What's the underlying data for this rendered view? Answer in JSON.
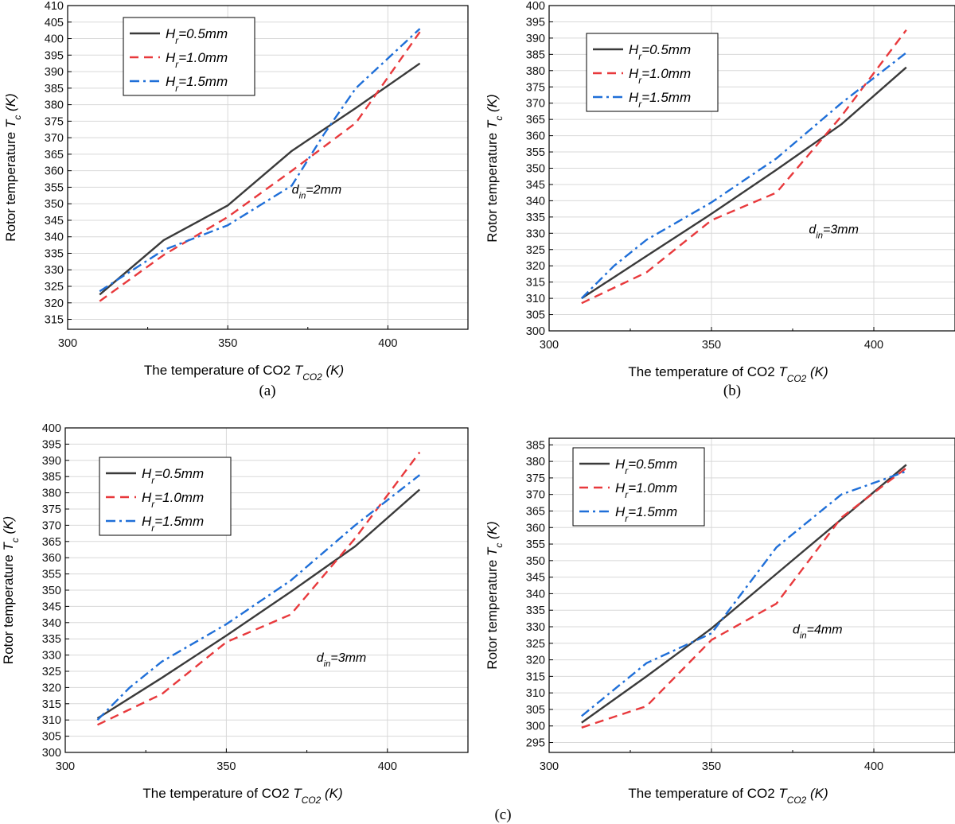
{
  "figure_label": "(c)",
  "colors": {
    "series": [
      "#3a3a3a",
      "#e8393c",
      "#1f6fd8"
    ],
    "grid": "#d8d8d8",
    "axis": "#000000"
  },
  "chart_data": [
    {
      "type": "line",
      "panel_label": "(a)",
      "title": "",
      "xlabel": "The temperature of CO2 ",
      "xlabel_var": "T",
      "xlabel_sub": "CO2",
      "xlabel_unit": " (K)",
      "ylabel": "Rotor temperature ",
      "ylabel_var": "T",
      "ylabel_sub": "c",
      "ylabel_unit": " (K)",
      "xlim": [
        300,
        425
      ],
      "ylim": [
        312,
        410
      ],
      "xticks": [
        300,
        350,
        400
      ],
      "yticks": [
        315,
        320,
        325,
        330,
        335,
        340,
        345,
        350,
        355,
        360,
        365,
        370,
        375,
        380,
        385,
        390,
        395,
        400,
        405,
        410
      ],
      "legend_position": "top-left",
      "annotation": {
        "var": "d",
        "sub": "in",
        "text": "=2mm",
        "x": 370,
        "y": 353
      },
      "series": [
        {
          "name": "H_r=0.5mm",
          "label_var": "H",
          "label_sub": "r",
          "label_text": "=0.5mm",
          "style": "solid",
          "x": [
            310,
            330,
            350,
            370,
            390,
            410
          ],
          "values": [
            322.5,
            339,
            349.5,
            366,
            379,
            392.5
          ]
        },
        {
          "name": "H_r=1.0mm",
          "label_var": "H",
          "label_sub": "r",
          "label_text": "=1.0mm",
          "style": "dash",
          "x": [
            310,
            330,
            350,
            370,
            390,
            410
          ],
          "values": [
            320.5,
            334.5,
            346,
            360,
            374.5,
            402
          ]
        },
        {
          "name": "H_r=1.5mm",
          "label_var": "H",
          "label_sub": "r",
          "label_text": "=1.5mm",
          "style": "dashdot",
          "x": [
            310,
            330,
            350,
            370,
            380,
            390,
            410
          ],
          "values": [
            323.5,
            336,
            343.5,
            355.5,
            371,
            385,
            403
          ]
        }
      ]
    },
    {
      "type": "line",
      "panel_label": "(b)",
      "title": "",
      "xlabel": "The temperature of CO2 ",
      "xlabel_var": "T",
      "xlabel_sub": "CO2",
      "xlabel_unit": " (K)",
      "ylabel": "Rotor temperature ",
      "ylabel_var": "T",
      "ylabel_sub": "c",
      "ylabel_unit": " (K)",
      "xlim": [
        300,
        425
      ],
      "ylim": [
        300,
        400
      ],
      "xticks": [
        300,
        350,
        400
      ],
      "yticks": [
        300,
        305,
        310,
        315,
        320,
        325,
        330,
        335,
        340,
        345,
        350,
        355,
        360,
        365,
        370,
        375,
        380,
        385,
        390,
        395,
        400
      ],
      "legend_position": "top-left",
      "annotation": {
        "var": "d",
        "sub": "in",
        "text": "=3mm",
        "x": 380,
        "y": 330
      },
      "series": [
        {
          "name": "H_r=0.5mm",
          "label_var": "H",
          "label_sub": "r",
          "label_text": "=0.5mm",
          "style": "solid",
          "x": [
            310,
            330,
            350,
            370,
            390,
            410
          ],
          "values": [
            310,
            323,
            336,
            349.5,
            363.5,
            381
          ]
        },
        {
          "name": "H_r=1.0mm",
          "label_var": "H",
          "label_sub": "r",
          "label_text": "=1.0mm",
          "style": "dash",
          "x": [
            310,
            330,
            350,
            370,
            390,
            410
          ],
          "values": [
            308.5,
            318,
            334,
            342.5,
            366,
            392.5
          ]
        },
        {
          "name": "H_r=1.5mm",
          "label_var": "H",
          "label_sub": "r",
          "label_text": "=1.5mm",
          "style": "dashdot",
          "x": [
            310,
            320,
            330,
            350,
            370,
            390,
            410
          ],
          "values": [
            310,
            320,
            328,
            339.5,
            353,
            370,
            385.5
          ]
        }
      ]
    },
    {
      "type": "line",
      "panel_label": "",
      "title": "",
      "xlabel": "The temperature of CO2 ",
      "xlabel_var": "T",
      "xlabel_sub": "CO2",
      "xlabel_unit": " (K)",
      "ylabel": "Rotor temperature ",
      "ylabel_var": "T",
      "ylabel_sub": "c",
      "ylabel_unit": " (K)",
      "xlim": [
        300,
        425
      ],
      "ylim": [
        300,
        400
      ],
      "xticks": [
        300,
        350,
        400
      ],
      "yticks": [
        300,
        305,
        310,
        315,
        320,
        325,
        330,
        335,
        340,
        345,
        350,
        355,
        360,
        365,
        370,
        375,
        380,
        385,
        390,
        395,
        400
      ],
      "legend_position": "top-left",
      "annotation": {
        "var": "d",
        "sub": "in",
        "text": "=3mm",
        "x": 378,
        "y": 328
      },
      "series": [
        {
          "name": "H_r=0.5mm",
          "label_var": "H",
          "label_sub": "r",
          "label_text": "=0.5mm",
          "style": "solid",
          "x": [
            310,
            330,
            350,
            370,
            390,
            410
          ],
          "values": [
            310.5,
            323,
            336,
            349.5,
            363.5,
            381
          ]
        },
        {
          "name": "H_r=1.0mm",
          "label_var": "H",
          "label_sub": "r",
          "label_text": "=1.0mm",
          "style": "dash",
          "x": [
            310,
            330,
            350,
            370,
            390,
            410
          ],
          "values": [
            308.5,
            318,
            334,
            342.5,
            366,
            392.5
          ]
        },
        {
          "name": "H_r=1.5mm",
          "label_var": "H",
          "label_sub": "r",
          "label_text": "=1.5mm",
          "style": "dashdot",
          "x": [
            310,
            320,
            330,
            350,
            370,
            390,
            410
          ],
          "values": [
            310,
            320,
            328,
            339.5,
            353,
            370,
            385.5
          ]
        }
      ]
    },
    {
      "type": "line",
      "panel_label": "",
      "title": "",
      "xlabel": "The temperature of CO2 ",
      "xlabel_var": "T",
      "xlabel_sub": "CO2",
      "xlabel_unit": " (K)",
      "ylabel": "Rotor temperature ",
      "ylabel_var": "T",
      "ylabel_sub": "c",
      "ylabel_unit": " (K)",
      "xlim": [
        300,
        425
      ],
      "ylim": [
        292,
        387
      ],
      "xticks": [
        300,
        350,
        400
      ],
      "yticks": [
        295,
        300,
        305,
        310,
        315,
        320,
        325,
        330,
        335,
        340,
        345,
        350,
        355,
        360,
        365,
        370,
        375,
        380,
        385
      ],
      "legend_position": "top-left",
      "annotation": {
        "var": "d",
        "sub": "in",
        "text": "=4mm",
        "x": 375,
        "y": 328
      },
      "series": [
        {
          "name": "H_r=0.5mm",
          "label_var": "H",
          "label_sub": "r",
          "label_text": "=0.5mm",
          "style": "solid",
          "x": [
            310,
            330,
            350,
            370,
            390,
            410
          ],
          "values": [
            301,
            315,
            329.5,
            346,
            362.5,
            379
          ]
        },
        {
          "name": "H_r=1.0mm",
          "label_var": "H",
          "label_sub": "r",
          "label_text": "=1.0mm",
          "style": "dash",
          "x": [
            310,
            330,
            350,
            370,
            390,
            410
          ],
          "values": [
            299.5,
            306,
            326,
            337,
            363,
            378
          ]
        },
        {
          "name": "H_r=1.5mm",
          "label_var": "H",
          "label_sub": "r",
          "label_text": "=1.5mm",
          "style": "dashdot",
          "x": [
            310,
            330,
            350,
            370,
            390,
            410
          ],
          "values": [
            303,
            319,
            328,
            354,
            370,
            377
          ]
        }
      ]
    }
  ]
}
